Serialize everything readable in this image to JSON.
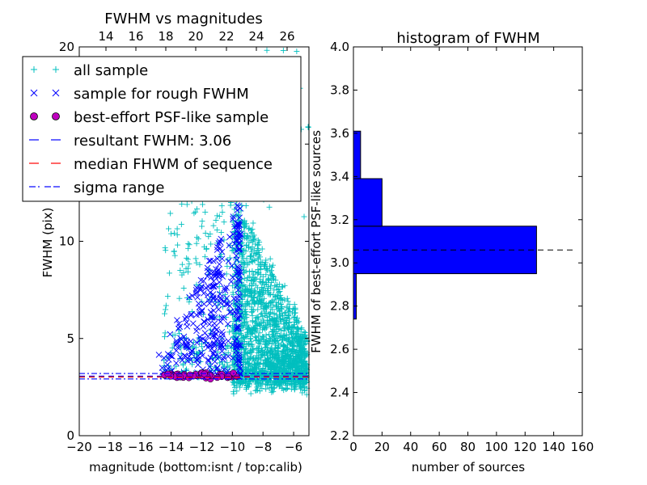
{
  "chart_data": [
    {
      "type": "scatter",
      "title": "FWHM vs magnitudes",
      "xlabel": "magnitude (bottom:isnt / top:calib)",
      "ylabel": "FWHM (pix)",
      "xlim": [
        -20,
        -5
      ],
      "ylim": [
        0,
        20
      ],
      "xticks": [
        "−20",
        "−18",
        "−16",
        "−14",
        "−12",
        "−10",
        "−8",
        "−6"
      ],
      "yticks": [
        "0",
        "5",
        "10",
        "15",
        "20"
      ],
      "xtop_ticks": [
        "14",
        "16",
        "18",
        "20",
        "22",
        "24",
        "26"
      ],
      "legend_position": "upper-left",
      "legend": [
        "all sample",
        "sample for rough FWHM",
        "best-effort PSF-like sample",
        "resultant FWHM: 3.06",
        "median FHWM of sequence",
        "sigma range"
      ],
      "resultant_fwhm": 3.06,
      "median_fwhm_sequence": 3.06,
      "sigma_range": [
        2.92,
        3.2
      ],
      "clusters": {
        "all_sample": {
          "x_range": [
            -14.5,
            -5
          ],
          "y_range": [
            2.2,
            20
          ],
          "count": 2600,
          "core": {
            "x": [
              -10,
              -5.1
            ],
            "y": [
              2.5,
              13
            ],
            "count": 1900
          }
        },
        "rough_sample": {
          "x_range": [
            -15,
            -9.5
          ],
          "y_range": [
            2.9,
            12
          ],
          "count": 260
        },
        "psf_sample": {
          "x_range": [
            -14.5,
            -9.6
          ],
          "y_center": 3.08,
          "count": 65
        }
      },
      "colors": {
        "all_sample": "#00bfbf",
        "rough_sample": "#0000ff",
        "psf_sample": "#bf00bf",
        "resultant_line": "#0000ff",
        "median_line": "#ff0000",
        "sigma_line": "#0000ff"
      }
    },
    {
      "type": "bar",
      "orientation": "horizontal",
      "title": "histogram of FWHM",
      "xlabel": "number of sources",
      "ylabel": "FWHM of best-effort PSF-like sources",
      "xlim": [
        0,
        160
      ],
      "ylim": [
        2.2,
        4.0
      ],
      "xticks": [
        "0",
        "20",
        "40",
        "60",
        "80",
        "100",
        "120",
        "140",
        "160"
      ],
      "yticks": [
        "2.2",
        "2.4",
        "2.6",
        "2.8",
        "3.0",
        "3.2",
        "3.4",
        "3.6",
        "3.8",
        "4.0"
      ],
      "bins": [
        {
          "lo": 2.74,
          "hi": 2.95,
          "count": 2
        },
        {
          "lo": 2.95,
          "hi": 3.17,
          "count": 128
        },
        {
          "lo": 3.17,
          "hi": 3.39,
          "count": 20
        },
        {
          "lo": 3.39,
          "hi": 3.61,
          "count": 5
        }
      ],
      "resultant_fwhm": 3.06,
      "bar_color": "#0000ff"
    }
  ]
}
